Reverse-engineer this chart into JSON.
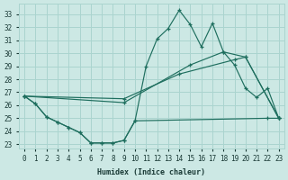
{
  "xlabel": "Humidex (Indice chaleur)",
  "bg_color": "#cce8e4",
  "grid_color": "#aad4cf",
  "line_color": "#1e6e5e",
  "xlim": [
    -0.5,
    23.5
  ],
  "ylim": [
    22.7,
    33.8
  ],
  "xticks": [
    0,
    1,
    2,
    3,
    4,
    5,
    6,
    7,
    8,
    9,
    10,
    11,
    12,
    13,
    14,
    15,
    16,
    17,
    18,
    19,
    20,
    21,
    22,
    23
  ],
  "yticks": [
    23,
    24,
    25,
    26,
    27,
    28,
    29,
    30,
    31,
    32,
    33
  ],
  "series": [
    {
      "x": [
        0,
        1,
        2,
        3,
        4,
        5,
        6,
        7,
        8,
        9,
        10,
        22,
        23
      ],
      "y": [
        26.7,
        26.1,
        25.1,
        24.7,
        24.3,
        23.9,
        23.1,
        23.1,
        23.1,
        23.3,
        24.8,
        25.0,
        25.0
      ]
    },
    {
      "x": [
        0,
        1,
        2,
        3,
        4,
        5,
        6,
        7,
        8,
        9,
        10,
        11,
        12,
        13,
        14,
        15,
        16,
        17,
        18,
        19,
        20,
        21,
        22,
        23
      ],
      "y": [
        26.7,
        26.1,
        25.1,
        24.7,
        24.3,
        23.9,
        23.1,
        23.1,
        23.1,
        23.3,
        24.8,
        29.0,
        31.1,
        31.9,
        33.3,
        32.2,
        30.5,
        32.3,
        30.1,
        29.1,
        27.3,
        26.6,
        27.3,
        25.0
      ]
    },
    {
      "x": [
        0,
        9,
        14,
        19,
        20,
        23
      ],
      "y": [
        26.7,
        26.5,
        28.4,
        29.5,
        29.7,
        25.0
      ]
    },
    {
      "x": [
        0,
        9,
        15,
        18,
        20,
        23
      ],
      "y": [
        26.7,
        26.2,
        29.1,
        30.1,
        29.7,
        25.0
      ]
    }
  ]
}
